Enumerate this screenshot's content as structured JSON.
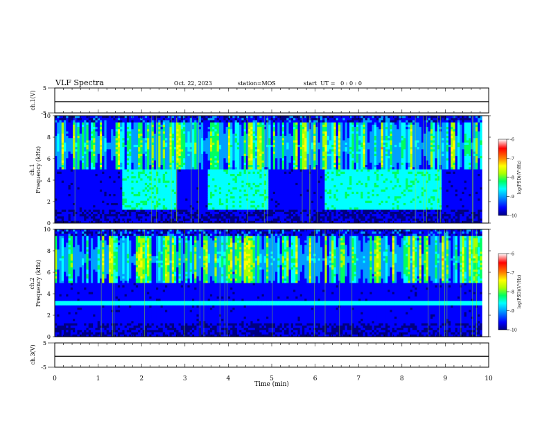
{
  "header": {
    "title": "VLF Spectra",
    "date": "Oct. 22, 2023",
    "station": "station=MOS",
    "start_ut": "start  UT =   0 : 0 : 0"
  },
  "colorbar": {
    "label": "log(PSD)(V²/Hz)",
    "ticks": [
      "-6",
      "-7",
      "-8",
      "-9",
      "-10"
    ],
    "colormap": [
      "#000080",
      "#0000ff",
      "#00a0ff",
      "#00ffff",
      "#00ff60",
      "#aaff00",
      "#ffff00",
      "#ff8000",
      "#ff0000",
      "#ffffff"
    ]
  },
  "chart_data": [
    {
      "type": "line",
      "panel": "ch1-waveform",
      "ylabel": "ch.1(V)",
      "ylim": [
        -5,
        5
      ],
      "yticks": [
        "5",
        "-5"
      ],
      "x": [
        0,
        10
      ],
      "values": [
        -0.5,
        -0.5
      ],
      "xlim": [
        0,
        10
      ]
    },
    {
      "type": "heatmap",
      "panel": "ch1-spectrogram",
      "ylabel_line1": "ch.1",
      "ylabel_line2": "Frequency (kHz)",
      "ylim": [
        0,
        10
      ],
      "yticks": [
        "0",
        "2",
        "4",
        "6",
        "8",
        "10"
      ],
      "xlim": [
        0,
        9.85
      ],
      "zlim": [
        -10,
        -6
      ],
      "colorbar": "log(PSD)(V²/Hz)",
      "hiss_bands": [
        [
          1.55,
          2.8
        ],
        [
          3.5,
          4.9
        ],
        [
          6.2,
          8.9
        ]
      ]
    },
    {
      "type": "heatmap",
      "panel": "ch2-spectrogram",
      "ylabel_line1": "ch.2",
      "ylabel_line2": "Frequency (kHz)",
      "ylim": [
        0,
        10
      ],
      "yticks": [
        "0",
        "2",
        "4",
        "6",
        "8",
        "10"
      ],
      "xlim": [
        0,
        9.85
      ],
      "zlim": [
        -10,
        -6
      ],
      "colorbar": "log(PSD)(V²/Hz)",
      "line_kHz": 3.2
    },
    {
      "type": "line",
      "panel": "ch3-waveform",
      "ylabel": "ch.3(V)",
      "ylim": [
        -5,
        5
      ],
      "yticks": [
        "5",
        "-5"
      ],
      "x": [
        0,
        10
      ],
      "values": [
        -0.5,
        -0.5
      ],
      "xlim": [
        0,
        10
      ]
    }
  ],
  "xaxis": {
    "label": "Time (min)",
    "ticks": [
      "0",
      "1",
      "2",
      "3",
      "4",
      "5",
      "6",
      "7",
      "8",
      "9",
      "10"
    ]
  }
}
